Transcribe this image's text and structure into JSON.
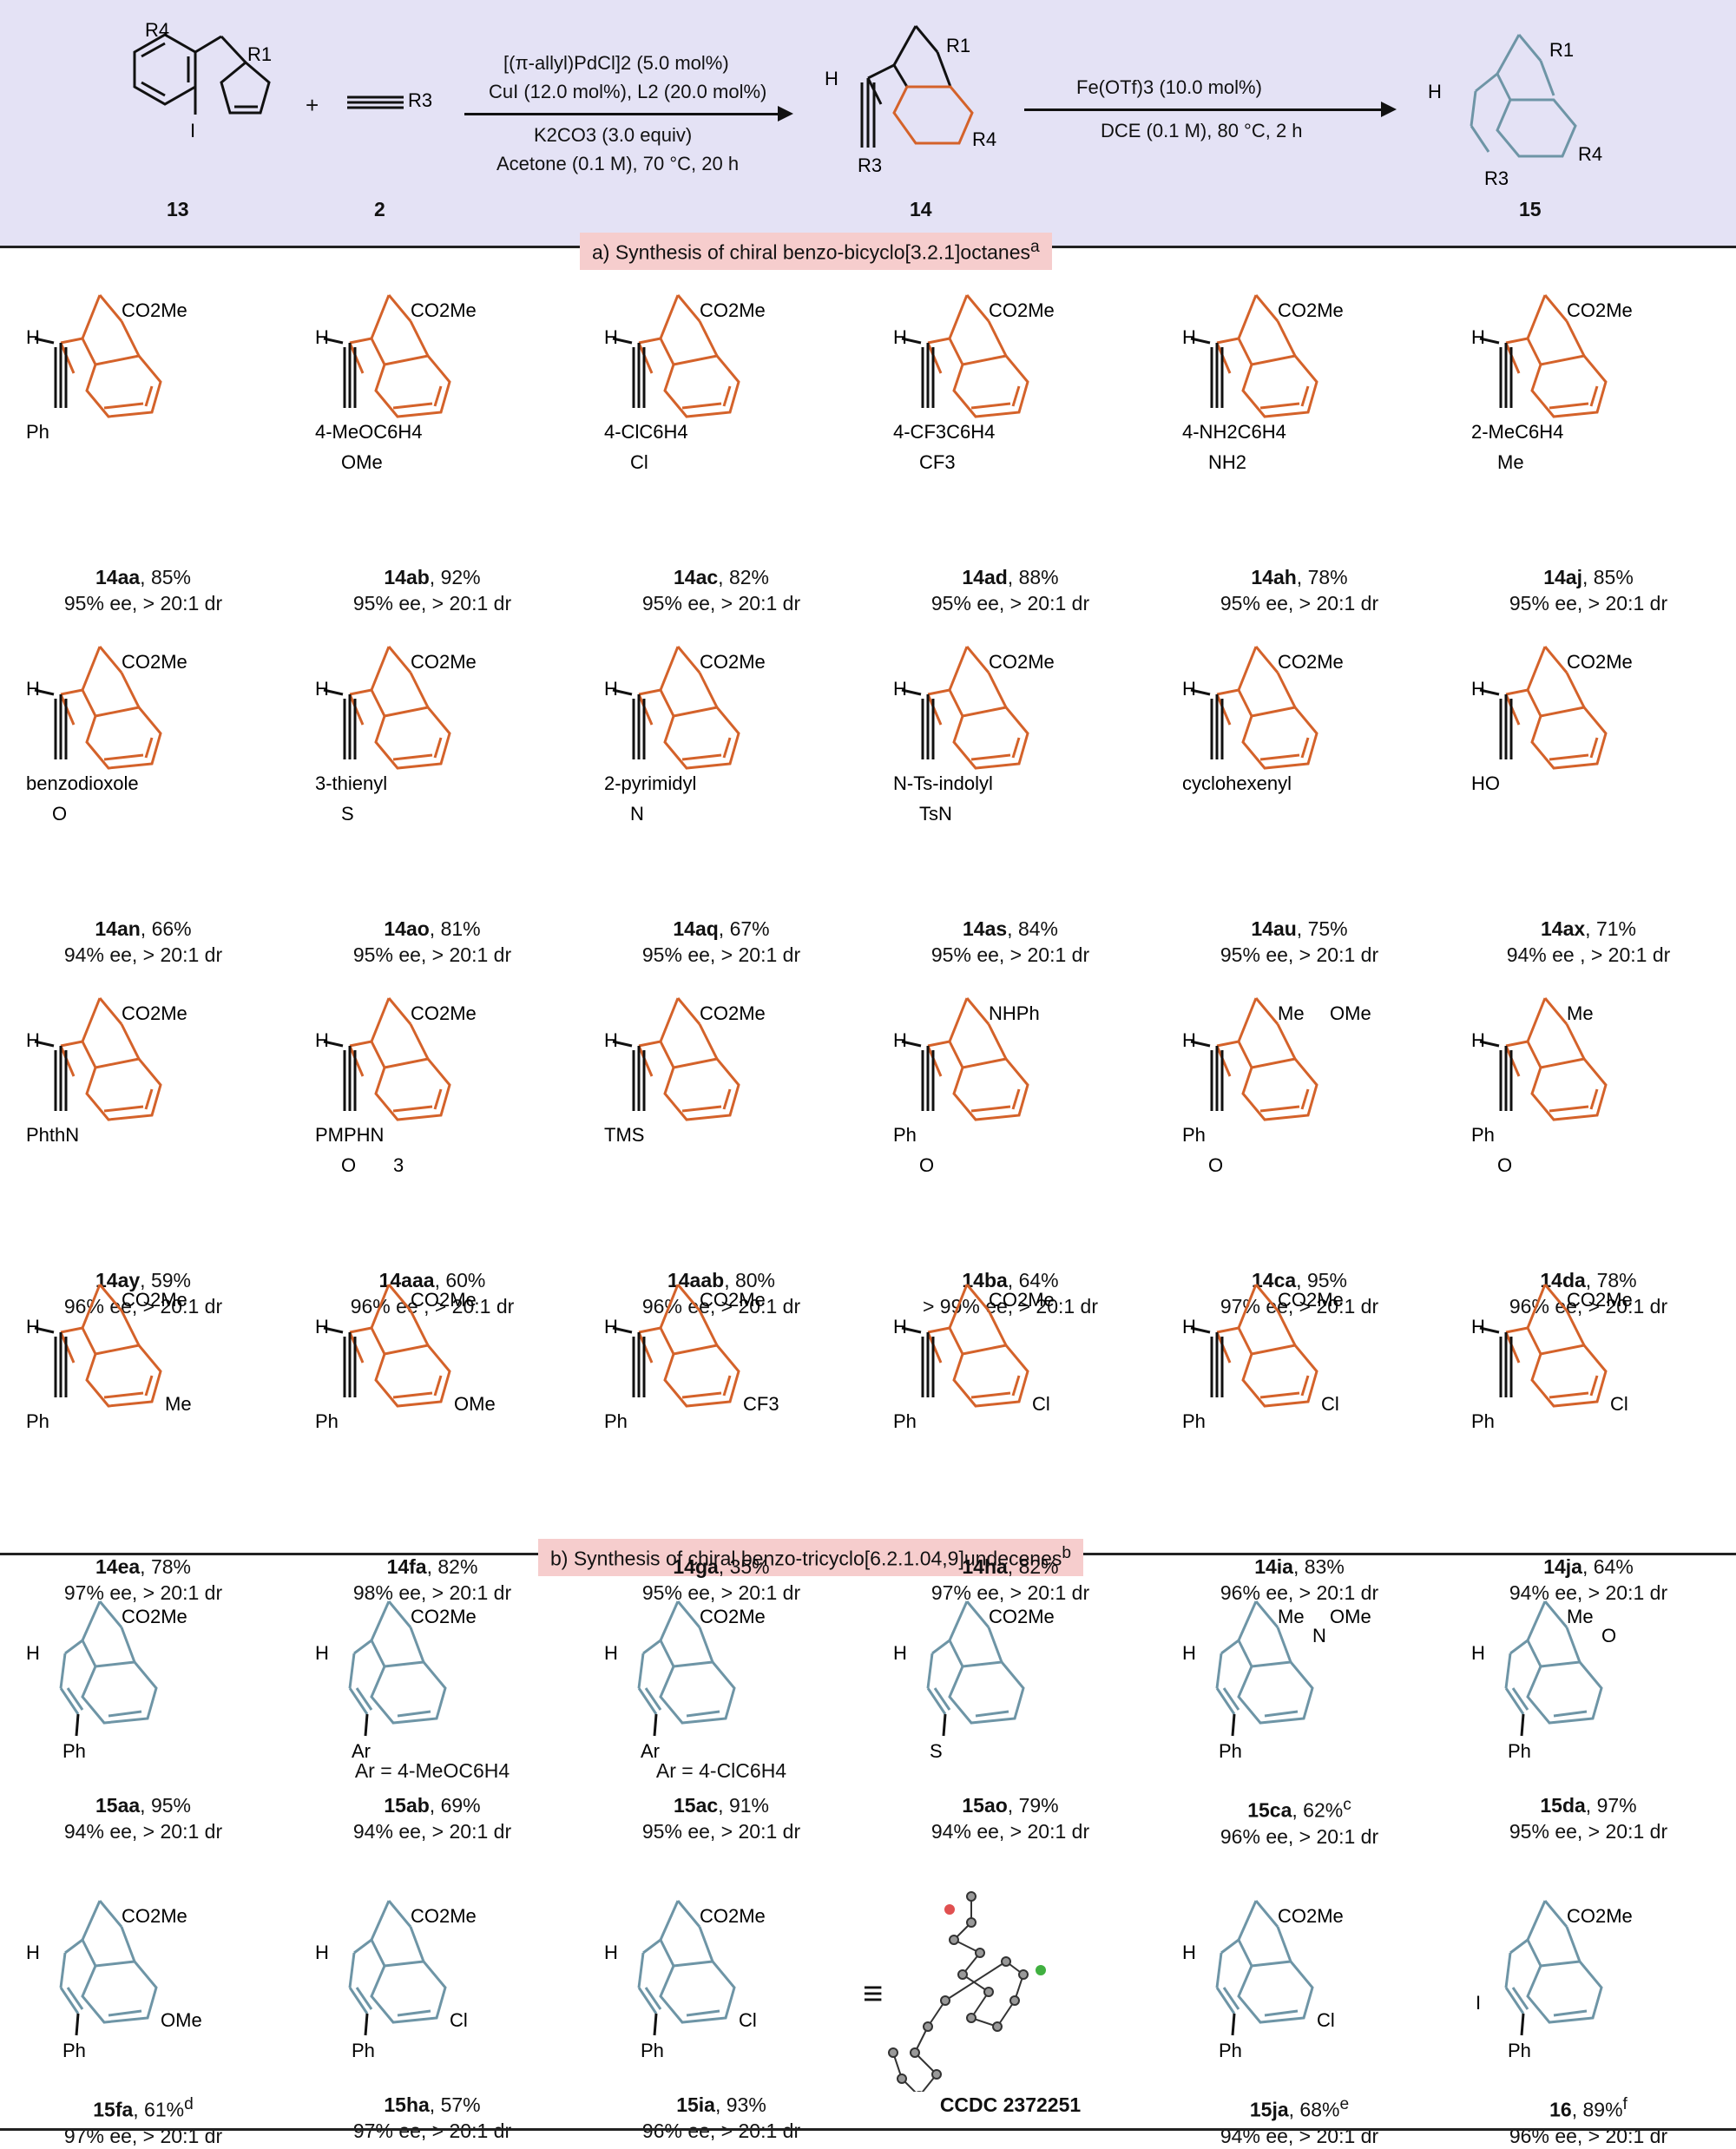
{
  "header": {
    "compounds": [
      {
        "id": "13",
        "label": "13",
        "subs": [
          "R4",
          "R1",
          "I"
        ]
      },
      {
        "id": "plus",
        "label": "+"
      },
      {
        "id": "2",
        "label": "2",
        "subs": [
          "R3"
        ]
      },
      {
        "id": "14",
        "label": "14",
        "subs": [
          "R1",
          "H",
          "R3",
          "R4"
        ]
      },
      {
        "id": "15",
        "label": "15",
        "subs": [
          "R1",
          "H",
          "R3",
          "R4"
        ]
      }
    ],
    "step1_conditions": [
      "[(π-allyl)PdCl]2 (5.0 mol%)",
      "CuI (12.0 mol%), L2 (20.0 mol%)",
      "K2CO3 (3.0 equiv)",
      "Acetone (0.1 M), 70 °C, 20 h"
    ],
    "step2_conditions": [
      "Fe(OTf)3 (10.0 mol%)",
      "DCE (0.1 M), 80 °C, 2 h"
    ]
  },
  "section_a": {
    "title": "a) Synthesis of chiral benzo-bicyclo[3.2.1]octanes",
    "sup": "a"
  },
  "section_b": {
    "title": "b) Synthesis of chiral benzo-tricyclo[6.2.1.04,9]undecenes",
    "sup": "b"
  },
  "products_a": [
    {
      "id": "14aa",
      "yield": ", 85%",
      "sel": "95% ee, > 20:1 dr",
      "r1": "CO2Me",
      "r3": "Ph",
      "h": "H"
    },
    {
      "id": "14ab",
      "yield": ", 92%",
      "sel": "95% ee, > 20:1 dr",
      "r1": "CO2Me",
      "r3": "4-MeOC6H4",
      "sub": "OMe",
      "h": "H"
    },
    {
      "id": "14ac",
      "yield": ", 82%",
      "sel": "95% ee, > 20:1 dr",
      "r1": "CO2Me",
      "r3": "4-ClC6H4",
      "sub": "Cl",
      "h": "H"
    },
    {
      "id": "14ad",
      "yield": ", 88%",
      "sel": "95% ee, > 20:1 dr",
      "r1": "CO2Me",
      "r3": "4-CF3C6H4",
      "sub": "CF3",
      "h": "H"
    },
    {
      "id": "14ah",
      "yield": ", 78%",
      "sel": "95% ee, > 20:1 dr",
      "r1": "CO2Me",
      "r3": "4-NH2C6H4",
      "sub": "NH2",
      "h": "H"
    },
    {
      "id": "14aj",
      "yield": ", 85%",
      "sel": "95% ee, > 20:1 dr",
      "r1": "CO2Me",
      "r3": "2-MeC6H4",
      "sub": "Me",
      "h": "H"
    },
    {
      "id": "14an",
      "yield": ", 66%",
      "sel": "94% ee, > 20:1 dr",
      "r1": "CO2Me",
      "r3": "benzodioxole",
      "sub": "O",
      "h": "H"
    },
    {
      "id": "14ao",
      "yield": ", 81%",
      "sel": "95% ee, > 20:1 dr",
      "r1": "CO2Me",
      "r3": "3-thienyl",
      "sub": "S",
      "h": "H"
    },
    {
      "id": "14aq",
      "yield": ", 67%",
      "sel": "95% ee, > 20:1 dr",
      "r1": "CO2Me",
      "r3": "2-pyrimidyl",
      "sub": "N",
      "h": "H"
    },
    {
      "id": "14as",
      "yield": ", 84%",
      "sel": "95% ee, > 20:1 dr",
      "r1": "CO2Me",
      "r3": "N-Ts-indolyl",
      "sub": "TsN",
      "h": "H"
    },
    {
      "id": "14au",
      "yield": ", 75%",
      "sel": "95% ee, > 20:1 dr",
      "r1": "CO2Me",
      "r3": "cyclohexenyl",
      "h": "H"
    },
    {
      "id": "14ax",
      "yield": ", 71%",
      "sel": "94% ee , > 20:1 dr",
      "r1": "CO2Me",
      "r3": "HO",
      "h": "H"
    },
    {
      "id": "14ay",
      "yield": ", 59%",
      "sel": "96% ee, > 20:1 dr",
      "r1": "CO2Me",
      "r3": "PhthN",
      "h": "H"
    },
    {
      "id": "14aaa",
      "yield": ", 60%",
      "sel": "96% ee , > 20:1 dr",
      "r1": "CO2Me",
      "r3": "PMPHN",
      "sub": "O",
      "sub2": "3",
      "h": "H"
    },
    {
      "id": "14aab",
      "yield": ", 80%",
      "sel": "96% ee, > 20:1 dr",
      "r1": "CO2Me",
      "r3": "TMS",
      "h": "H"
    },
    {
      "id": "14ba",
      "yield": ", 64%",
      "sel": "> 99% ee, > 20:1 dr",
      "r1": "NHPh",
      "r3": "Ph",
      "sub": "O",
      "h": "H"
    },
    {
      "id": "14ca",
      "yield": ", 95%",
      "sel": "97% ee, > 20:1 dr",
      "r1": "Me",
      "r1b": "OMe",
      "r3": "Ph",
      "sub": "O",
      "h": "H"
    },
    {
      "id": "14da",
      "yield": ", 78%",
      "sel": "96% ee, > 20:1 dr",
      "r1": "Me",
      "r3": "Ph",
      "sub": "O",
      "h": "H"
    },
    {
      "id": "14ea",
      "yield": ", 78%",
      "sel": "97% ee, > 20:1 dr",
      "r1": "CO2Me",
      "r3": "Ph",
      "r4": "Me",
      "h": "H"
    },
    {
      "id": "14fa",
      "yield": ", 82%",
      "sel": "98% ee, > 20:1 dr",
      "r1": "CO2Me",
      "r3": "Ph",
      "r4": "OMe",
      "h": "H"
    },
    {
      "id": "14ga",
      "yield": ", 35%",
      "sel": "95% ee, > 20:1 dr",
      "r1": "CO2Me",
      "r3": "Ph",
      "r4": "CF3",
      "h": "H"
    },
    {
      "id": "14ha",
      "yield": ", 82%",
      "sel": "97% ee, > 20:1 dr",
      "r1": "CO2Me",
      "r3": "Ph",
      "r4": "Cl",
      "h": "H"
    },
    {
      "id": "14ia",
      "yield": ", 83%",
      "sel": "96% ee, > 20:1 dr",
      "r1": "CO2Me",
      "r3": "Ph",
      "r4": "Cl",
      "h": "H"
    },
    {
      "id": "14ja",
      "yield": ", 64%",
      "sel": "94% ee, > 20:1 dr",
      "r1": "CO2Me",
      "r3": "Ph",
      "r4": "Cl",
      "h": "H"
    }
  ],
  "products_b": [
    {
      "id": "15aa",
      "yield": ", 95%",
      "sel": "94% ee, > 20:1 dr",
      "r1": "CO2Me",
      "r3": "Ph",
      "h": "H"
    },
    {
      "id": "15ab",
      "yield": ", 69%",
      "sel": "94% ee, > 20:1 dr",
      "r1": "CO2Me",
      "r3": "Ar",
      "note": "Ar = 4-MeOC6H4",
      "h": "H"
    },
    {
      "id": "15ac",
      "yield": ", 91%",
      "sel": "95% ee, > 20:1 dr",
      "r1": "CO2Me",
      "r3": "Ar",
      "note": "Ar = 4-ClC6H4",
      "h": "H"
    },
    {
      "id": "15ao",
      "yield": ", 79%",
      "sel": "94% ee, > 20:1 dr",
      "r1": "CO2Me",
      "r3": "S",
      "h": "H"
    },
    {
      "id": "15ca",
      "yield": ", 62%",
      "sup": "c",
      "sel": "96% ee, > 20:1 dr",
      "r1": "Me",
      "r1b": "OMe",
      "sub": "N",
      "sub2": "O",
      "r3": "Ph",
      "h": "H"
    },
    {
      "id": "15da",
      "yield": ", 97%",
      "sel": "95% ee, > 20:1 dr",
      "r1": "Me",
      "sub": "O",
      "r3": "Ph",
      "h": "H"
    },
    {
      "id": "15fa",
      "yield": ", 61%",
      "sup": "d",
      "sel": "97% ee, > 20:1 dr",
      "r1": "CO2Me",
      "r3": "Ph",
      "r4": "OMe",
      "h": "H"
    },
    {
      "id": "15ha",
      "yield": ", 57%",
      "sel": "97% ee, > 20:1 dr",
      "r1": "CO2Me",
      "r3": "Ph",
      "r4": "Cl",
      "h": "H"
    },
    {
      "id": "15ia",
      "yield": ", 93%",
      "sel": "96% ee, > 20:1 dr",
      "r1": "CO2Me",
      "r3": "Ph",
      "r4": "Cl",
      "h": "H"
    },
    {
      "id": "CCDC 2372251",
      "yield": "",
      "sel": "",
      "equiv": "≡"
    },
    {
      "id": "15ja",
      "yield": ", 68%",
      "sup": "e",
      "sel": "94% ee, > 20:1 dr",
      "r1": "CO2Me",
      "r3": "Ph",
      "r4": "Cl",
      "h": "H"
    },
    {
      "id": "16",
      "yield": ", 89%",
      "sup": "f",
      "sel": "96% ee, > 20:1 dr",
      "r1": "CO2Me",
      "r3": "Ph",
      "i": "I"
    }
  ],
  "colors": {
    "header_bg": "#e4e2f5",
    "section_title_bg": "#f6cdcd",
    "scaffold_a": "#d4622a",
    "scaffold_b": "#6e95a6",
    "bond": "#111111"
  }
}
